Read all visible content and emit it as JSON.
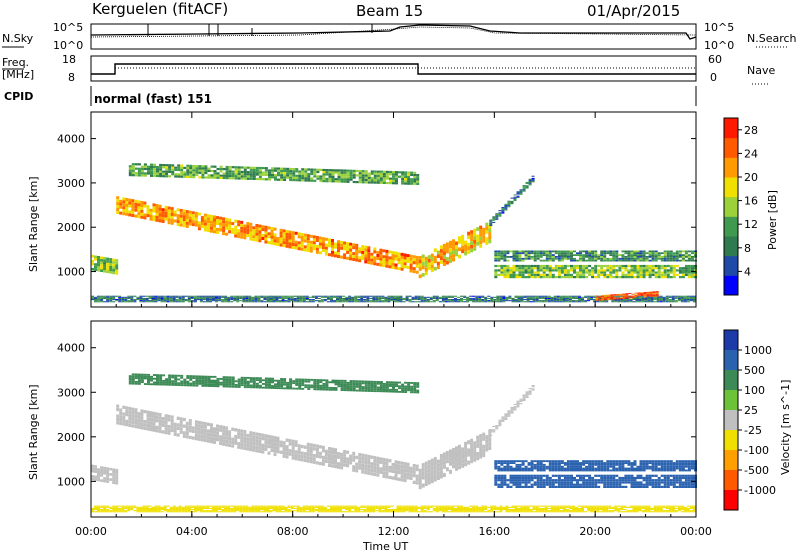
{
  "header": {
    "radar": "Kerguelen (fitACF)",
    "beam": "Beam 15",
    "date": "01/Apr/2015"
  },
  "panels": {
    "sky": {
      "left_label": "N.Sky",
      "right_label": "N.Search",
      "left_ticks": [
        "10^5",
        "10^0"
      ],
      "right_ticks": [
        "10^5",
        "10^0"
      ]
    },
    "freq": {
      "left_label_line1": "Freq.",
      "left_label_line2": "[MHz]",
      "right_label": "Nave",
      "left_ticks": [
        "18",
        "8"
      ],
      "right_ticks": [
        "60",
        "0"
      ]
    },
    "cpid": {
      "label": "CPID",
      "mode": "normal (fast) 151"
    }
  },
  "colors": {
    "power": [
      "#0000ff",
      "#1f4aa8",
      "#2f7a4e",
      "#3f9a4f",
      "#9bd13a",
      "#f0e000",
      "#ff9a00",
      "#ff5a00",
      "#ff1a00"
    ],
    "velocity": [
      "#1c3aa8",
      "#2a62b0",
      "#3c8a55",
      "#6cc33a",
      "#c0c0c0",
      "#f0e000",
      "#ffa000",
      "#ff5a00",
      "#ff0000"
    ],
    "ground_scatter": "#c0c0c0"
  },
  "chart_data": [
    {
      "type": "heatmap",
      "panel": "power",
      "ylabel": "Slant Range [km]",
      "y_ticks": [
        1000,
        2000,
        3000,
        4000
      ],
      "ylim": [
        200,
        4600
      ],
      "x_ticks": [
        "00:00",
        "04:00",
        "08:00",
        "12:00",
        "16:00",
        "20:00",
        "00:00"
      ],
      "xlim_hours": [
        0,
        24
      ],
      "colorbar": {
        "label": "Power [dB]",
        "ticks": [
          "4",
          "8",
          "12",
          "16",
          "20",
          "24",
          "28"
        ],
        "range": [
          0,
          30
        ]
      },
      "bands": [
        {
          "t_start": 1.0,
          "t_end": 12.9,
          "r_start": 2500,
          "r_end": 1150,
          "width": 400,
          "value": 22
        },
        {
          "t_start": 0.0,
          "t_end": 1.0,
          "r_start": 1200,
          "r_end": 1100,
          "width": 350,
          "value": 14
        },
        {
          "t_start": 13.0,
          "t_end": 15.8,
          "r_start": 1100,
          "r_end": 1900,
          "width": 500,
          "value": 20
        },
        {
          "t_start": 1.5,
          "t_end": 13.0,
          "r_start": 3300,
          "r_end": 3100,
          "width": 300,
          "value": 12
        },
        {
          "t_start": 15.8,
          "t_end": 17.5,
          "r_start": 2100,
          "r_end": 3100,
          "width": 150,
          "value": 8
        },
        {
          "t_start": 16.0,
          "t_end": 24.0,
          "r_start": 1000,
          "r_end": 1000,
          "width": 300,
          "value": 14
        },
        {
          "t_start": 16.0,
          "t_end": 24.0,
          "r_start": 1350,
          "r_end": 1350,
          "width": 250,
          "value": 10
        },
        {
          "t_start": 0.0,
          "t_end": 24.0,
          "r_start": 380,
          "r_end": 380,
          "width": 150,
          "value": 8
        },
        {
          "t_start": 20.0,
          "t_end": 22.5,
          "r_start": 400,
          "r_end": 500,
          "width": 120,
          "value": 26
        }
      ]
    },
    {
      "type": "heatmap",
      "panel": "velocity",
      "ylabel": "Slant Range [km]",
      "xlabel": "Time UT",
      "y_ticks": [
        1000,
        2000,
        3000,
        4000
      ],
      "ylim": [
        200,
        4600
      ],
      "x_ticks": [
        "00:00",
        "04:00",
        "08:00",
        "12:00",
        "16:00",
        "20:00",
        "00:00"
      ],
      "xlim_hours": [
        0,
        24
      ],
      "colorbar": {
        "label": "Velocity [m s^-1]",
        "ticks": [
          "1000",
          "500",
          "100",
          "25",
          "-25",
          "-100",
          "-500",
          "-1000"
        ]
      },
      "bands": [
        {
          "t_start": 1.0,
          "t_end": 12.9,
          "r_start": 2500,
          "r_end": 1150,
          "width": 450,
          "value": "ground"
        },
        {
          "t_start": 0.0,
          "t_end": 1.0,
          "r_start": 1200,
          "r_end": 1100,
          "width": 350,
          "value": "ground"
        },
        {
          "t_start": 13.0,
          "t_end": 15.8,
          "r_start": 1100,
          "r_end": 1900,
          "width": 550,
          "value": "ground"
        },
        {
          "t_start": 1.5,
          "t_end": 13.0,
          "r_start": 3300,
          "r_end": 3100,
          "width": 250,
          "value": 100
        },
        {
          "t_start": 15.8,
          "t_end": 17.5,
          "r_start": 2100,
          "r_end": 3100,
          "width": 150,
          "value": "ground"
        },
        {
          "t_start": 16.0,
          "t_end": 24.0,
          "r_start": 1000,
          "r_end": 1000,
          "width": 300,
          "value": 300
        },
        {
          "t_start": 16.0,
          "t_end": 24.0,
          "r_start": 1350,
          "r_end": 1350,
          "width": 250,
          "value": 500
        },
        {
          "t_start": 0.0,
          "t_end": 24.0,
          "r_start": 380,
          "r_end": 380,
          "width": 150,
          "value": -50
        }
      ]
    }
  ]
}
